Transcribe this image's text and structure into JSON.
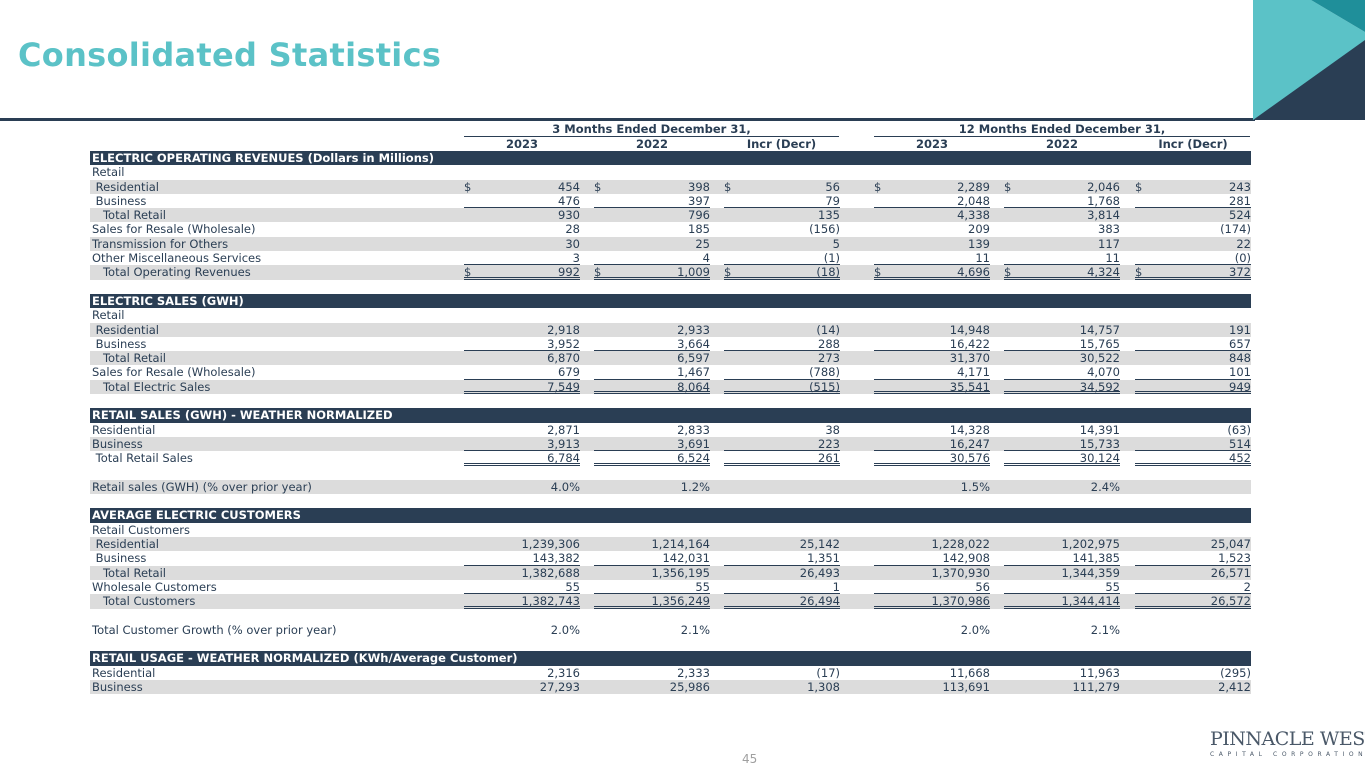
{
  "title": "Consolidated Statistics",
  "page_number": "45",
  "logo": {
    "main": "PINNACLE WEST",
    "sub": "CAPITAL CORPORATION"
  },
  "header": {
    "three_months": "3 Months Ended December 31,",
    "twelve_months": "12 Months Ended December 31,",
    "cols": [
      "2023",
      "2022",
      "Incr (Decr)",
      "2023",
      "2022",
      "Incr (Decr)"
    ]
  },
  "rows": [
    {
      "label": "ELECTRIC OPERATING REVENUES (Dollars in Millions)",
      "type": "section"
    },
    {
      "label": "Retail",
      "type": "plain"
    },
    {
      "label": " Residential",
      "type": "shade",
      "dollar": true,
      "values": [
        "454",
        "398",
        "56",
        "2,289",
        "2,046",
        "243"
      ]
    },
    {
      "label": " Business",
      "type": "plain",
      "ul": "u1",
      "values": [
        "476",
        "397",
        "79",
        "2,048",
        "1,768",
        "281"
      ]
    },
    {
      "label": "   Total Retail",
      "type": "shade",
      "values": [
        "930",
        "796",
        "135",
        "4,338",
        "3,814",
        "524"
      ]
    },
    {
      "label": "Sales for Resale (Wholesale)",
      "type": "plain",
      "values": [
        "28",
        "185",
        "(156)",
        "209",
        "383",
        "(174)"
      ]
    },
    {
      "label": "Transmission for Others",
      "type": "shade",
      "values": [
        "30",
        "25",
        "5",
        "139",
        "117",
        "22"
      ]
    },
    {
      "label": "Other Miscellaneous Services",
      "type": "plain",
      "ul": "u1",
      "values": [
        "3",
        "4",
        "(1)",
        "11",
        "11",
        "(0)"
      ]
    },
    {
      "label": "   Total Operating Revenues",
      "type": "shade",
      "dollar": true,
      "ul": "u2",
      "values": [
        "992",
        "1,009",
        "(18)",
        "4,696",
        "4,324",
        "372"
      ]
    },
    {
      "label": "",
      "type": "blank"
    },
    {
      "label": "ELECTRIC SALES (GWH)",
      "type": "section"
    },
    {
      "label": "Retail",
      "type": "plain"
    },
    {
      "label": " Residential",
      "type": "shade",
      "values": [
        "2,918",
        "2,933",
        "(14)",
        "14,948",
        "14,757",
        "191"
      ]
    },
    {
      "label": " Business",
      "type": "plain",
      "ul": "u1",
      "values": [
        "3,952",
        "3,664",
        "288",
        "16,422",
        "15,765",
        "657"
      ]
    },
    {
      "label": "   Total Retail",
      "type": "shade",
      "values": [
        "6,870",
        "6,597",
        "273",
        "31,370",
        "30,522",
        "848"
      ]
    },
    {
      "label": "Sales for Resale (Wholesale)",
      "type": "plain",
      "ul": "u1",
      "values": [
        "679",
        "1,467",
        "(788)",
        "4,171",
        "4,070",
        "101"
      ]
    },
    {
      "label": "   Total Electric Sales",
      "type": "shade",
      "ul": "u2",
      "values": [
        "7,549",
        "8,064",
        "(515)",
        "35,541",
        "34,592",
        "949"
      ]
    },
    {
      "label": "",
      "type": "blank"
    },
    {
      "label": "RETAIL SALES (GWH) - WEATHER NORMALIZED",
      "type": "section"
    },
    {
      "label": "Residential",
      "type": "plain",
      "values": [
        "2,871",
        "2,833",
        "38",
        "14,328",
        "14,391",
        "(63)"
      ]
    },
    {
      "label": "Business",
      "type": "shade",
      "ul": "u1",
      "values": [
        "3,913",
        "3,691",
        "223",
        "16,247",
        "15,733",
        "514"
      ]
    },
    {
      "label": " Total Retail Sales",
      "type": "plain",
      "ul": "u2",
      "values": [
        "6,784",
        "6,524",
        "261",
        "30,576",
        "30,124",
        "452"
      ]
    },
    {
      "label": "",
      "type": "blank"
    },
    {
      "label": "Retail sales (GWH) (% over prior year)",
      "type": "shade",
      "values": [
        "4.0%",
        "1.2%",
        "",
        "1.5%",
        "2.4%",
        ""
      ]
    },
    {
      "label": "",
      "type": "blank"
    },
    {
      "label": "AVERAGE ELECTRIC CUSTOMERS",
      "type": "section"
    },
    {
      "label": "Retail Customers",
      "type": "plain"
    },
    {
      "label": " Residential",
      "type": "shade",
      "values": [
        "1,239,306",
        "1,214,164",
        "25,142",
        "1,228,022",
        "1,202,975",
        "25,047"
      ]
    },
    {
      "label": " Business",
      "type": "plain",
      "ul": "u1",
      "values": [
        "143,382",
        "142,031",
        "1,351",
        "142,908",
        "141,385",
        "1,523"
      ]
    },
    {
      "label": "   Total Retail",
      "type": "shade",
      "values": [
        "1,382,688",
        "1,356,195",
        "26,493",
        "1,370,930",
        "1,344,359",
        "26,571"
      ]
    },
    {
      "label": "Wholesale Customers",
      "type": "plain",
      "ul": "u1",
      "values": [
        "55",
        "55",
        "1",
        "56",
        "55",
        "2"
      ]
    },
    {
      "label": "   Total Customers",
      "type": "shade",
      "ul": "u2",
      "values": [
        "1,382,743",
        "1,356,249",
        "26,494",
        "1,370,986",
        "1,344,414",
        "26,572"
      ]
    },
    {
      "label": "",
      "type": "blank"
    },
    {
      "label": "Total Customer Growth (% over prior year)",
      "type": "plain",
      "values": [
        "2.0%",
        "2.1%",
        "",
        "2.0%",
        "2.1%",
        ""
      ]
    },
    {
      "label": "",
      "type": "blank"
    },
    {
      "label": "RETAIL USAGE - WEATHER NORMALIZED (KWh/Average Customer)",
      "type": "section"
    },
    {
      "label": "Residential",
      "type": "plain",
      "values": [
        "2,316",
        "2,333",
        "(17)",
        "11,668",
        "11,963",
        "(295)"
      ]
    },
    {
      "label": "Business",
      "type": "shade",
      "values": [
        "27,293",
        "25,986",
        "1,308",
        "113,691",
        "111,279",
        "2,412"
      ]
    }
  ]
}
